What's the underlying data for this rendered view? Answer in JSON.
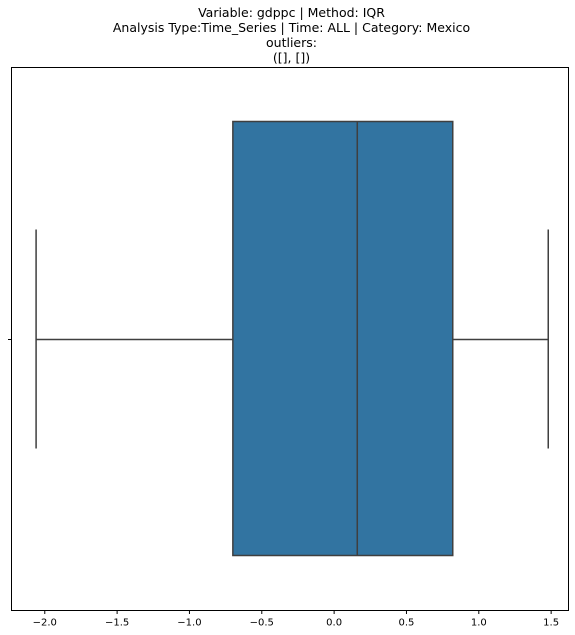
{
  "chart_data": {
    "type": "box",
    "title_lines": [
      "Variable: gdppc | Method: IQR",
      "Analysis Type:Time_Series | Time: ALL | Category: Mexico",
      "outliers:",
      "([], [])"
    ],
    "xlabel": "",
    "ylabel": "",
    "xlim": [
      -2.23,
      1.62
    ],
    "x_ticks": [
      -2.0,
      -1.5,
      -1.0,
      -0.5,
      0.0,
      0.5,
      1.0,
      1.5
    ],
    "x_tick_labels": [
      "−2.0",
      "−1.5",
      "−1.0",
      "−0.5",
      "0.0",
      "0.5",
      "1.0",
      "1.5"
    ],
    "orientation": "horizontal",
    "box": {
      "whisker_low": -2.06,
      "q1": -0.7,
      "median": 0.16,
      "q3": 0.82,
      "whisker_high": 1.48,
      "outliers": []
    },
    "box_color": "#3274a1",
    "line_color": "#3f3f3f",
    "grid": false
  }
}
